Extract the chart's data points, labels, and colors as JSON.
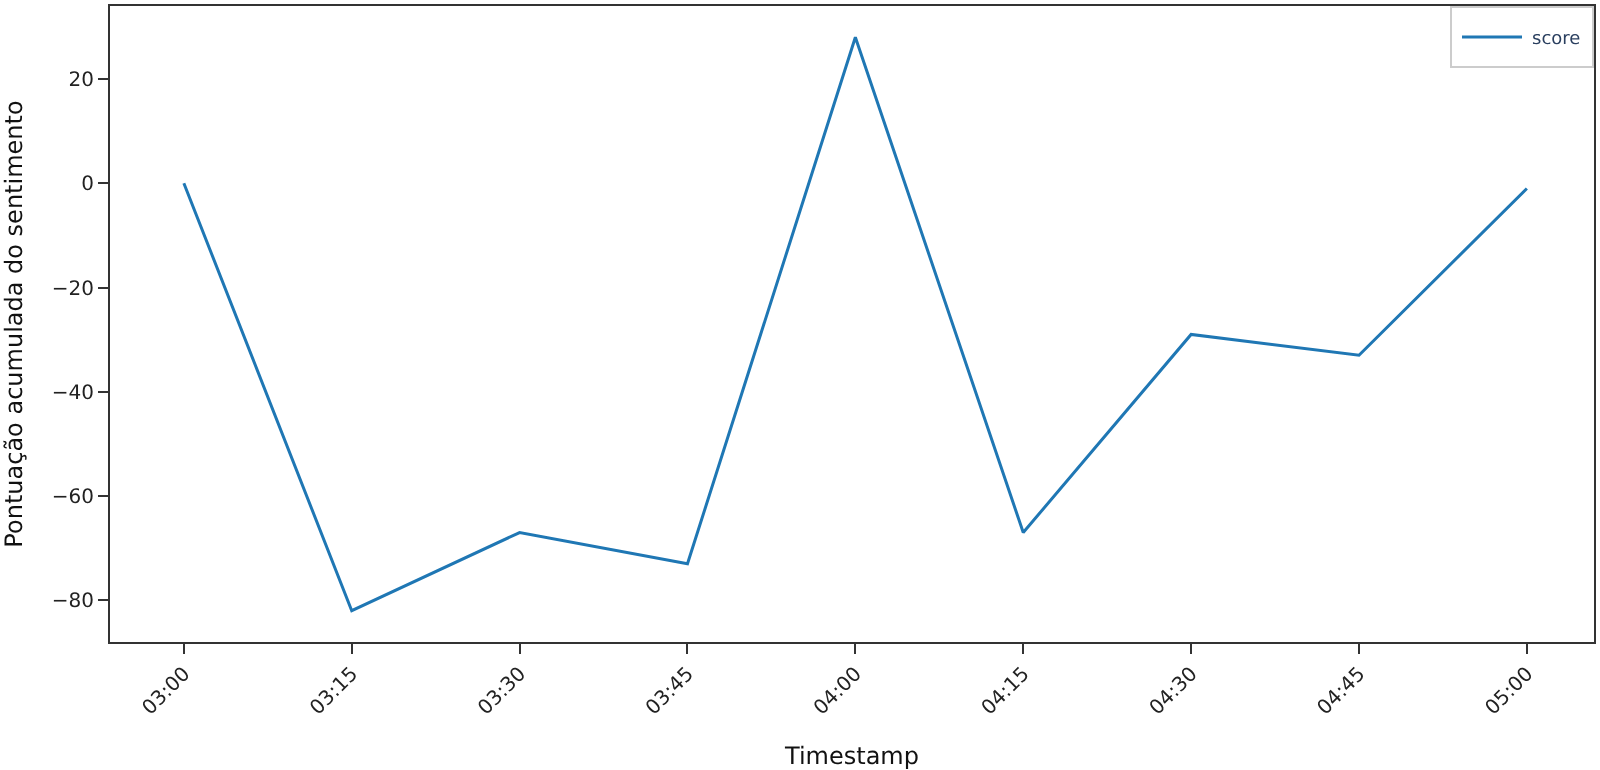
{
  "chart_data": {
    "type": "line",
    "xlabel": "Timestamp",
    "ylabel": "Pontuação acumulada do sentimento",
    "x": [
      3,
      3.25,
      3.5,
      3.75,
      4,
      4.25,
      4.5,
      4.75,
      5
    ],
    "series": [
      {
        "name": "score",
        "color": "#1f77b4",
        "values": [
          0,
          -82,
          -67,
          -73,
          28,
          -67,
          -29,
          -33,
          -1
        ]
      }
    ],
    "xlim": [
      2.89,
      5.1
    ],
    "xticks": [
      {
        "value": 3,
        "label": "03:00"
      },
      {
        "value": 3.25,
        "label": "03:15"
      },
      {
        "value": 3.5,
        "label": "03:30"
      },
      {
        "value": 3.75,
        "label": "03:45"
      },
      {
        "value": 4,
        "label": "04:00"
      },
      {
        "value": 4.25,
        "label": "04:15"
      },
      {
        "value": 4.5,
        "label": "04:30"
      },
      {
        "value": 4.75,
        "label": "04:45"
      },
      {
        "value": 5,
        "label": "05:00"
      }
    ],
    "ylim": [
      -88,
      34
    ],
    "yticks": [
      -80,
      -60,
      -40,
      -20,
      0,
      20
    ],
    "legend": "top right",
    "marker": "none",
    "line_style": "solid"
  }
}
